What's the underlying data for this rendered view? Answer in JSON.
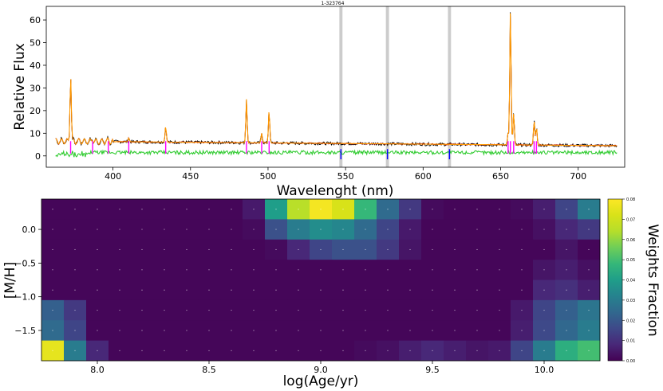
{
  "chart_data": [
    {
      "type": "line",
      "title": "1-323764",
      "xlabel": "Wavelenght (nm)",
      "ylabel": "Relative Flux",
      "xlim": [
        357,
        730
      ],
      "ylim": [
        -5,
        66
      ],
      "xticks": [
        400,
        450,
        500,
        550,
        600,
        650,
        700
      ],
      "yticks": [
        0,
        10,
        20,
        30,
        40,
        50,
        60
      ],
      "grid": false,
      "masked_regions": [
        [
          546,
          548
        ],
        [
          576,
          578
        ],
        [
          616,
          618
        ]
      ],
      "continuum_level": {
        "start": 6.5,
        "end": 4.5
      },
      "residual_level": 1.5,
      "emission_lines": [
        {
          "x": 372.7,
          "peak": 36
        },
        {
          "x": 386.9,
          "peak": 7.5
        },
        {
          "x": 397.0,
          "peak": 7.2
        },
        {
          "x": 410.2,
          "peak": 8.0
        },
        {
          "x": 434.0,
          "peak": 13
        },
        {
          "x": 486.1,
          "peak": 25
        },
        {
          "x": 495.9,
          "peak": 10
        },
        {
          "x": 500.7,
          "peak": 20
        },
        {
          "x": 654.8,
          "peak": 10
        },
        {
          "x": 656.3,
          "peak": 64
        },
        {
          "x": 658.4,
          "peak": 19
        },
        {
          "x": 671.6,
          "peak": 15.5
        },
        {
          "x": 673.1,
          "peak": 12.5
        }
      ],
      "series": [
        {
          "color": "#000000"
        },
        {
          "color": "#b00000"
        },
        {
          "color": "#ff9900"
        },
        {
          "color": "#33cc33"
        },
        {
          "color": "#ff00ff"
        },
        {
          "color": "#0000ff"
        },
        {
          "color": "#cccccc"
        }
      ]
    },
    {
      "type": "heatmap",
      "xlabel": "log(Age/yr)",
      "ylabel": "[M/H]",
      "colorbar_label": "Weights Fraction",
      "xlim": [
        7.75,
        10.25
      ],
      "xticks": [
        8.0,
        8.5,
        9.0,
        9.5,
        10.0
      ],
      "xticklabels": [
        "8.0",
        "8.5",
        "9.0",
        "9.5",
        "10.0"
      ],
      "yticks": [
        0.0,
        -0.5,
        -1.0,
        -1.5
      ],
      "yticklabels": [
        "0.0",
        "−0.5",
        "−1.0",
        "−1.5"
      ],
      "colorbar_range": [
        0.0,
        0.08
      ],
      "colorbar_ticks": [
        "0.00",
        "0.01",
        "0.02",
        "0.03",
        "0.04",
        "0.05",
        "0.06",
        "0.07",
        "0.08"
      ],
      "x_centers": [
        7.8,
        7.9,
        8.0,
        8.1,
        8.2,
        8.3,
        8.4,
        8.5,
        8.6,
        8.7,
        8.8,
        8.9,
        9.0,
        9.1,
        9.2,
        9.3,
        9.4,
        9.5,
        9.6,
        9.7,
        9.8,
        9.9,
        10.0,
        10.1,
        10.2
      ],
      "y_centers": [
        0.3,
        0.0,
        -0.3,
        -0.6,
        -0.9,
        -1.2,
        -1.5,
        -1.8
      ],
      "values": [
        [
          0.001,
          0.001,
          0.001,
          0.001,
          0.001,
          0.001,
          0.001,
          0.001,
          0.001,
          0.005,
          0.04,
          0.065,
          0.078,
          0.072,
          0.048,
          0.025,
          0.012,
          0.002,
          0.001,
          0.001,
          0.001,
          0.002,
          0.006,
          0.015,
          0.03
        ],
        [
          0.001,
          0.001,
          0.001,
          0.001,
          0.001,
          0.001,
          0.001,
          0.001,
          0.001,
          0.002,
          0.018,
          0.03,
          0.035,
          0.033,
          0.025,
          0.015,
          0.005,
          0.001,
          0.001,
          0.001,
          0.001,
          0.001,
          0.003,
          0.008,
          0.012
        ],
        [
          0.001,
          0.001,
          0.001,
          0.001,
          0.001,
          0.001,
          0.001,
          0.001,
          0.001,
          0.001,
          0.002,
          0.008,
          0.015,
          0.018,
          0.018,
          0.012,
          0.004,
          0.001,
          0.001,
          0.001,
          0.001,
          0.001,
          0.001,
          0.004,
          0.001
        ],
        [
          0.001,
          0.001,
          0.001,
          0.001,
          0.001,
          0.001,
          0.001,
          0.001,
          0.001,
          0.001,
          0.001,
          0.001,
          0.001,
          0.001,
          0.001,
          0.001,
          0.001,
          0.001,
          0.001,
          0.001,
          0.001,
          0.001,
          0.004,
          0.006,
          0.003
        ],
        [
          0.001,
          0.001,
          0.001,
          0.001,
          0.001,
          0.001,
          0.001,
          0.001,
          0.001,
          0.001,
          0.001,
          0.001,
          0.001,
          0.001,
          0.001,
          0.001,
          0.001,
          0.001,
          0.001,
          0.001,
          0.001,
          0.001,
          0.008,
          0.01,
          0.006
        ],
        [
          0.022,
          0.012,
          0.001,
          0.001,
          0.001,
          0.001,
          0.001,
          0.001,
          0.001,
          0.001,
          0.001,
          0.001,
          0.001,
          0.001,
          0.001,
          0.001,
          0.001,
          0.001,
          0.001,
          0.001,
          0.001,
          0.005,
          0.015,
          0.022,
          0.028
        ],
        [
          0.025,
          0.015,
          0.001,
          0.001,
          0.001,
          0.001,
          0.001,
          0.001,
          0.001,
          0.001,
          0.001,
          0.001,
          0.001,
          0.001,
          0.001,
          0.001,
          0.001,
          0.001,
          0.001,
          0.001,
          0.001,
          0.006,
          0.016,
          0.024,
          0.03
        ],
        [
          0.075,
          0.03,
          0.008,
          0.001,
          0.001,
          0.001,
          0.001,
          0.001,
          0.001,
          0.001,
          0.001,
          0.001,
          0.001,
          0.001,
          0.002,
          0.003,
          0.006,
          0.008,
          0.006,
          0.004,
          0.005,
          0.015,
          0.03,
          0.045,
          0.05
        ]
      ]
    }
  ]
}
